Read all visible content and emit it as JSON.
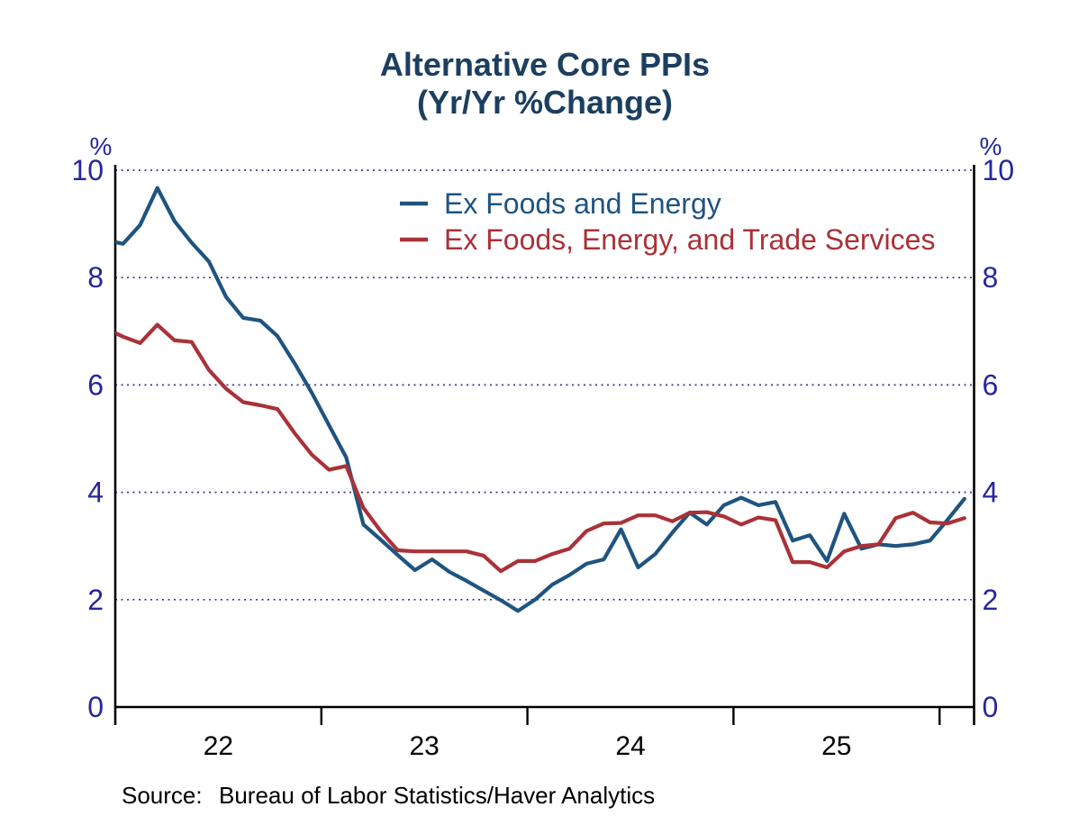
{
  "title": {
    "line1": "Alternative Core PPIs",
    "line2": "(Yr/Yr %Change)"
  },
  "legend": [
    {
      "label": "Ex Foods and Energy",
      "color": "#1F5480"
    },
    {
      "label": "Ex Foods, Energy, and Trade Services",
      "color": "#A93238"
    }
  ],
  "source": {
    "label": "Source:",
    "text": "Bureau of Labor Statistics/Haver Analytics"
  },
  "axes": {
    "y_unit_left": "%",
    "y_unit_right": "%",
    "y_ticks": [
      10,
      8,
      6,
      4,
      2,
      0
    ],
    "ylim": [
      0,
      10
    ],
    "x_tick_labels": [
      "22",
      "23",
      "24",
      "25"
    ],
    "grid": "dotted horizontal gridlines at 2,4,6,8,10"
  },
  "colors": {
    "background": "#FFFFFF",
    "title": "#1C3F60",
    "axis_text": "#26269E",
    "grid": "#39398F",
    "axis_line": "#000000",
    "x_tick_text": "#000000",
    "source_text": "#000000",
    "series_blue": "#1F5480",
    "series_red": "#A93238"
  },
  "chart_data": {
    "type": "line",
    "title": "Alternative Core PPIs (Yr/Yr %Change)",
    "ylabel": "%",
    "ylim": [
      0,
      10
    ],
    "x_unit": "month_index",
    "x_note": "51 monthly points; year-boundary ticks fall 0.55 month after points 0,12,24,36,48; tick labels 22,23,24,25 centered between boundary ticks",
    "x_tick_boundary_months": [
      0.55,
      12.55,
      24.55,
      36.55,
      48.55
    ],
    "legend_position": "top-center-inside",
    "grid": "horizontal dotted at 2,4,6,8,10",
    "series": [
      {
        "name": "Ex Foods and Energy",
        "color": "#1F5480",
        "values": [
          8.7,
          8.63,
          8.98,
          9.67,
          9.05,
          8.65,
          8.3,
          7.64,
          7.25,
          7.2,
          6.91,
          6.4,
          5.85,
          5.25,
          4.65,
          3.4,
          3.12,
          2.83,
          2.55,
          2.75,
          2.52,
          2.35,
          2.17,
          1.99,
          1.79,
          2.0,
          2.28,
          2.46,
          2.67,
          2.75,
          3.31,
          2.6,
          2.85,
          3.25,
          3.62,
          3.4,
          3.76,
          3.9,
          3.76,
          3.82,
          3.1,
          3.2,
          2.72,
          3.6,
          2.95,
          3.03,
          3.0,
          3.03,
          3.1,
          3.48,
          3.88
        ]
      },
      {
        "name": "Ex Foods, Energy, and Trade Services",
        "color": "#A93238",
        "values": [
          7.05,
          6.9,
          6.78,
          7.12,
          6.83,
          6.8,
          6.28,
          5.93,
          5.68,
          5.62,
          5.55,
          5.1,
          4.7,
          4.42,
          4.49,
          3.71,
          3.28,
          2.92,
          2.9,
          2.9,
          2.9,
          2.9,
          2.82,
          2.53,
          2.72,
          2.72,
          2.85,
          2.95,
          3.28,
          3.42,
          3.43,
          3.57,
          3.57,
          3.46,
          3.62,
          3.63,
          3.55,
          3.4,
          3.53,
          3.48,
          2.7,
          2.7,
          2.6,
          2.9,
          3.0,
          3.03,
          3.52,
          3.62,
          3.44,
          3.42,
          3.52
        ]
      }
    ]
  }
}
